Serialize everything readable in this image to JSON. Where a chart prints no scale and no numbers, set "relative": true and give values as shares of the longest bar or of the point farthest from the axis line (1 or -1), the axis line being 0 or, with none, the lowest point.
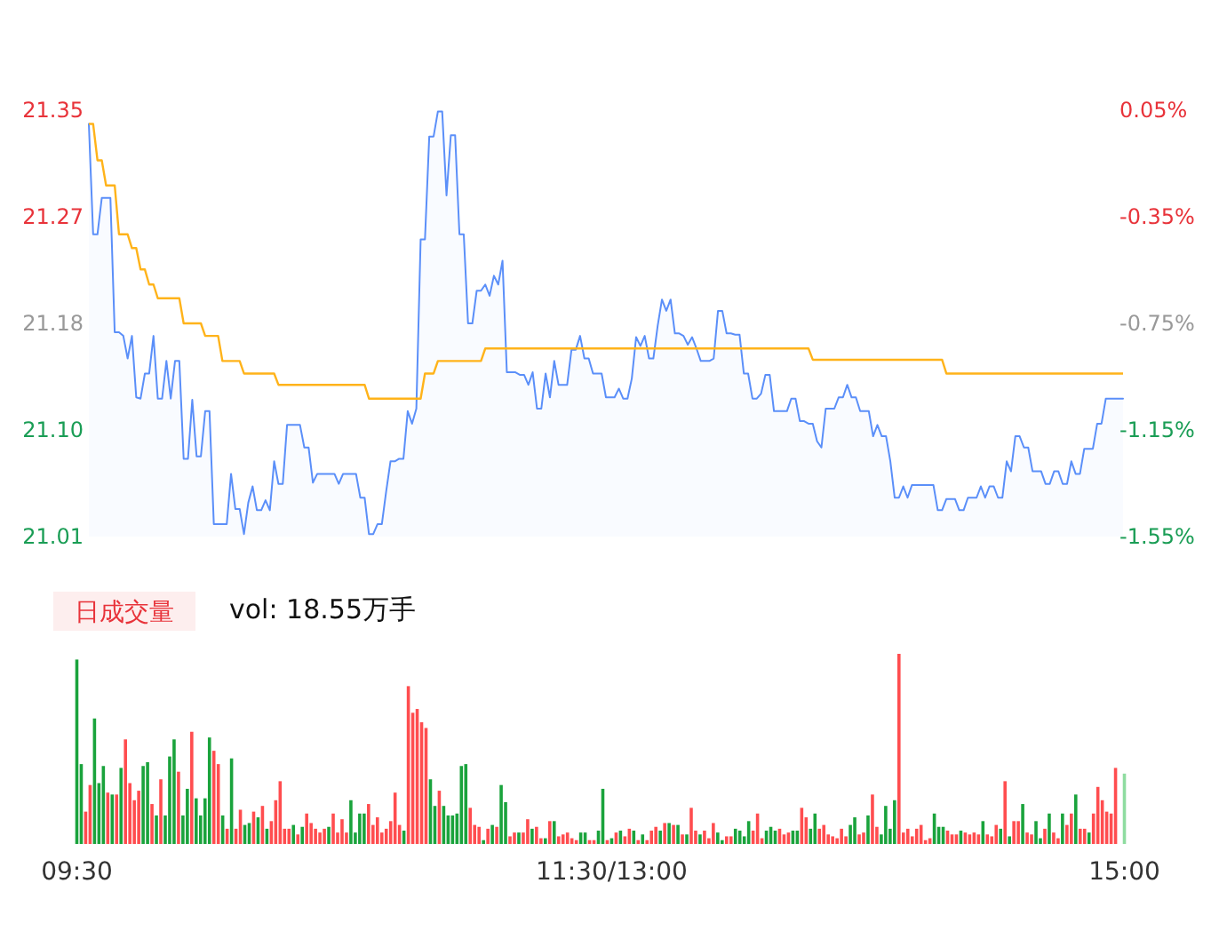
{
  "chart_data": [
    {
      "type": "line",
      "ylim": [
        21.01,
        21.35
      ],
      "yticks": [
        21.01,
        {
          "value": 21.095,
          "label": "21.10"
        },
        21.18,
        {
          "value": 21.265,
          "label": "21.27"
        },
        21.35
      ],
      "y2lim": [
        -1.55,
        0.05
      ],
      "y2ticks": [
        {
          "value": -1.55,
          "label": "-1.55%"
        },
        {
          "value": -1.15,
          "label": "-1.15%"
        },
        {
          "value": -0.75,
          "label": "-0.75%"
        },
        {
          "value": -0.35,
          "label": "-0.35%"
        },
        {
          "value": 0.05,
          "label": "0.05%"
        }
      ],
      "categories": [
        null,
        null,
        null,
        null,
        null,
        null,
        null,
        null,
        null,
        null,
        null,
        null,
        null,
        null,
        null,
        null,
        null,
        null,
        null,
        null,
        null,
        null,
        null,
        null,
        null,
        null,
        null,
        null,
        null,
        null,
        null,
        null,
        null,
        null,
        null,
        null,
        null,
        null,
        null,
        null,
        null,
        null,
        null,
        null,
        null,
        null,
        null,
        null,
        null,
        null,
        null,
        null,
        null,
        null,
        null,
        null,
        null,
        null,
        null,
        null,
        null,
        null,
        null,
        null,
        null,
        null,
        null,
        null,
        null,
        null,
        null,
        null,
        null,
        null,
        null,
        null,
        null,
        null,
        null,
        null,
        null,
        null,
        null,
        null,
        null,
        null,
        null,
        null,
        null,
        null,
        null,
        null,
        null,
        null,
        null,
        null,
        null,
        null,
        null,
        null,
        null,
        null,
        null,
        null,
        null,
        null,
        null,
        null,
        null,
        null,
        null,
        null,
        null,
        null,
        null,
        null,
        null,
        null,
        null,
        null,
        null,
        null,
        null,
        null,
        null,
        null,
        null,
        null,
        null,
        null,
        null,
        null,
        null,
        null,
        null,
        null,
        null,
        null,
        null,
        null,
        null,
        null,
        null,
        null,
        null,
        null,
        null,
        null,
        null,
        null,
        null,
        null,
        null,
        null,
        null,
        null,
        null,
        null,
        null,
        null,
        null,
        null,
        null,
        null,
        null,
        null,
        null,
        null,
        null,
        null,
        null,
        null,
        null,
        null,
        null,
        null,
        null,
        null,
        null,
        null,
        null,
        null,
        null,
        null,
        null,
        null,
        null,
        null,
        null,
        null,
        null,
        null,
        null,
        null,
        null,
        null,
        null,
        null,
        null,
        null,
        null,
        null,
        null,
        null,
        null,
        null,
        null,
        null,
        null,
        null,
        null,
        null,
        null,
        null,
        null,
        null,
        null,
        null,
        null,
        null,
        null,
        null,
        null,
        null,
        null,
        null,
        null,
        null,
        null,
        null,
        null,
        null,
        null,
        null,
        null,
        null,
        null,
        null,
        null,
        null,
        null
      ],
      "series": [
        {
          "type": "area",
          "color": "#5b8ff9",
          "values": [
            21.339,
            21.251,
            21.251,
            21.28,
            21.28,
            21.28,
            21.173,
            21.173,
            21.17,
            21.152,
            21.17,
            21.121,
            21.12,
            21.14,
            21.14,
            21.17,
            21.12,
            21.12,
            21.15,
            21.12,
            21.15,
            21.15,
            21.072,
            21.072,
            21.119,
            21.074,
            21.074,
            21.11,
            21.11,
            21.02,
            21.02,
            21.02,
            21.02,
            21.06,
            21.032,
            21.032,
            21.012,
            21.037,
            21.05,
            21.031,
            21.031,
            21.039,
            21.031,
            21.07,
            21.052,
            21.052,
            21.099,
            21.099,
            21.099,
            21.099,
            21.081,
            21.081,
            21.053,
            21.06,
            21.06,
            21.06,
            21.06,
            21.06,
            21.052,
            21.06,
            21.06,
            21.06,
            21.06,
            21.041,
            21.041,
            21.012,
            21.012,
            21.02,
            21.02,
            21.046,
            21.07,
            21.07,
            21.072,
            21.072,
            21.11,
            21.1,
            21.112,
            21.247,
            21.247,
            21.329,
            21.329,
            21.349,
            21.349,
            21.282,
            21.33,
            21.33,
            21.251,
            21.251,
            21.18,
            21.18,
            21.206,
            21.206,
            21.211,
            21.202,
            21.218,
            21.211,
            21.23,
            21.141,
            21.141,
            21.141,
            21.139,
            21.139,
            21.131,
            21.141,
            21.112,
            21.112,
            21.14,
            21.121,
            21.15,
            21.131,
            21.131,
            21.131,
            21.159,
            21.159,
            21.17,
            21.152,
            21.152,
            21.14,
            21.14,
            21.14,
            21.121,
            21.121,
            21.121,
            21.128,
            21.12,
            21.12,
            21.136,
            21.169,
            21.162,
            21.17,
            21.152,
            21.152,
            21.178,
            21.199,
            21.19,
            21.199,
            21.172,
            21.172,
            21.17,
            21.163,
            21.169,
            21.16,
            21.15,
            21.15,
            21.15,
            21.152,
            21.19,
            21.19,
            21.172,
            21.172,
            21.171,
            21.171,
            21.14,
            21.14,
            21.12,
            21.12,
            21.124,
            21.139,
            21.139,
            21.11,
            21.11,
            21.11,
            21.11,
            21.12,
            21.12,
            21.102,
            21.102,
            21.1,
            21.1,
            21.086,
            21.081,
            21.112,
            21.112,
            21.112,
            21.121,
            21.121,
            21.131,
            21.121,
            21.121,
            21.11,
            21.11,
            21.11,
            21.09,
            21.099,
            21.09,
            21.09,
            21.07,
            21.041,
            21.041,
            21.05,
            21.041,
            21.051,
            21.051,
            21.051,
            21.051,
            21.051,
            21.051,
            21.031,
            21.031,
            21.04,
            21.04,
            21.04,
            21.031,
            21.031,
            21.041,
            21.041,
            21.041,
            21.05,
            21.041,
            21.05,
            21.05,
            21.041,
            21.041,
            21.07,
            21.062,
            21.09,
            21.09,
            21.081,
            21.081,
            21.062,
            21.062,
            21.062,
            21.052,
            21.052,
            21.062,
            21.062,
            21.052,
            21.052,
            21.07,
            21.06,
            21.06,
            21.08,
            21.08,
            21.08,
            21.1,
            21.1,
            21.12,
            21.12,
            21.12,
            21.12,
            21.12
          ]
        },
        {
          "type": "line",
          "color": "#ffb31a",
          "values": [
            21.339,
            21.339,
            21.31,
            21.31,
            21.29,
            21.29,
            21.29,
            21.251,
            21.251,
            21.251,
            21.24,
            21.24,
            21.223,
            21.223,
            21.211,
            21.211,
            21.2,
            21.2,
            21.2,
            21.2,
            21.2,
            21.2,
            21.18,
            21.18,
            21.18,
            21.18,
            21.18,
            21.17,
            21.17,
            21.17,
            21.17,
            21.15,
            21.15,
            21.15,
            21.15,
            21.15,
            21.14,
            21.14,
            21.14,
            21.14,
            21.14,
            21.14,
            21.14,
            21.14,
            21.131,
            21.131,
            21.131,
            21.131,
            21.131,
            21.131,
            21.131,
            21.131,
            21.131,
            21.131,
            21.131,
            21.131,
            21.131,
            21.131,
            21.131,
            21.131,
            21.131,
            21.131,
            21.131,
            21.131,
            21.131,
            21.12,
            21.12,
            21.12,
            21.12,
            21.12,
            21.12,
            21.12,
            21.12,
            21.12,
            21.12,
            21.12,
            21.12,
            21.12,
            21.14,
            21.14,
            21.14,
            21.15,
            21.15,
            21.15,
            21.15,
            21.15,
            21.15,
            21.15,
            21.15,
            21.15,
            21.15,
            21.15,
            21.16,
            21.16,
            21.16,
            21.16,
            21.16,
            21.16,
            21.16,
            21.16,
            21.16,
            21.16,
            21.16,
            21.16,
            21.16,
            21.16,
            21.16,
            21.16,
            21.16,
            21.16,
            21.16,
            21.16,
            21.16,
            21.16,
            21.16,
            21.16,
            21.16,
            21.16,
            21.16,
            21.16,
            21.16,
            21.16,
            21.16,
            21.16,
            21.16,
            21.16,
            21.16,
            21.16,
            21.16,
            21.16,
            21.16,
            21.16,
            21.16,
            21.16,
            21.16,
            21.16,
            21.16,
            21.16,
            21.16,
            21.16,
            21.16,
            21.16,
            21.16,
            21.16,
            21.16,
            21.16,
            21.16,
            21.16,
            21.16,
            21.16,
            21.16,
            21.16,
            21.16,
            21.16,
            21.16,
            21.16,
            21.16,
            21.16,
            21.16,
            21.16,
            21.16,
            21.16,
            21.16,
            21.16,
            21.16,
            21.16,
            21.16,
            21.16,
            21.151,
            21.151,
            21.151,
            21.151,
            21.151,
            21.151,
            21.151,
            21.151,
            21.151,
            21.151,
            21.151,
            21.151,
            21.151,
            21.151,
            21.151,
            21.151,
            21.151,
            21.151,
            21.151,
            21.151,
            21.151,
            21.151,
            21.151,
            21.151,
            21.151,
            21.151,
            21.151,
            21.151,
            21.151,
            21.151,
            21.151,
            21.14,
            21.14,
            21.14,
            21.14,
            21.14,
            21.14,
            21.14,
            21.14,
            21.14,
            21.14,
            21.14,
            21.14,
            21.14,
            21.14,
            21.14,
            21.14,
            21.14,
            21.14,
            21.14,
            21.14,
            21.14,
            21.14,
            21.14,
            21.14,
            21.14,
            21.14,
            21.14,
            21.14,
            21.14,
            21.14,
            21.14,
            21.14,
            21.14,
            21.14,
            21.14,
            21.14,
            21.14,
            21.14,
            21.14,
            21.14,
            21.14,
            21.14
          ]
        }
      ]
    },
    {
      "type": "bar",
      "title": "日成交量",
      "subtitle": "vol: 18.55万手",
      "relative": true,
      "categories": [
        "09:30",
        null,
        null,
        null,
        null,
        null,
        null,
        null,
        null,
        null,
        null,
        null,
        null,
        null,
        null,
        null,
        null,
        null,
        null,
        null,
        null,
        null,
        null,
        null,
        null,
        null,
        null,
        null,
        null,
        null,
        null,
        null,
        null,
        null,
        null,
        null,
        null,
        null,
        null,
        null,
        null,
        null,
        null,
        null,
        null,
        null,
        null,
        null,
        null,
        null,
        null,
        null,
        null,
        null,
        null,
        null,
        null,
        null,
        null,
        null,
        null,
        null,
        null,
        null,
        null,
        null,
        null,
        null,
        null,
        null,
        null,
        null,
        null,
        null,
        null,
        null,
        null,
        null,
        null,
        null,
        null,
        null,
        null,
        null,
        null,
        null,
        null,
        null,
        null,
        null,
        null,
        null,
        null,
        null,
        null,
        null,
        null,
        null,
        null,
        null,
        null,
        null,
        null,
        null,
        null,
        null,
        null,
        null,
        null,
        null,
        null,
        null,
        null,
        null,
        null,
        null,
        null,
        null,
        null,
        null,
        null,
        "11:30/13:00",
        null,
        null,
        null,
        null,
        null,
        null,
        null,
        null,
        null,
        null,
        null,
        null,
        null,
        null,
        null,
        null,
        null,
        null,
        null,
        null,
        null,
        null,
        null,
        null,
        null,
        null,
        null,
        null,
        null,
        null,
        null,
        null,
        null,
        null,
        null,
        null,
        null,
        null,
        null,
        null,
        null,
        null,
        null,
        null,
        null,
        null,
        null,
        null,
        null,
        null,
        null,
        null,
        null,
        null,
        null,
        null,
        null,
        null,
        null,
        null,
        null,
        null,
        null,
        null,
        null,
        null,
        null,
        null,
        null,
        null,
        null,
        null,
        null,
        null,
        null,
        null,
        null,
        null,
        null,
        null,
        null,
        null,
        null,
        null,
        null,
        null,
        null,
        null,
        null,
        null,
        null,
        null,
        null,
        null,
        null,
        null,
        null,
        null,
        null,
        null,
        null,
        null,
        null,
        null,
        null,
        null,
        null,
        null,
        null,
        null,
        null,
        null,
        null,
        null,
        null,
        "15:00"
      ],
      "values": [
        0.97,
        0.42,
        0.17,
        0.31,
        0.66,
        0.32,
        0.41,
        0.27,
        0.26,
        0.26,
        0.4,
        0.55,
        0.32,
        0.23,
        0.28,
        0.41,
        0.43,
        0.21,
        0.15,
        0.34,
        0.15,
        0.46,
        0.55,
        0.38,
        0.15,
        0.29,
        0.59,
        0.24,
        0.15,
        0.24,
        0.56,
        0.49,
        0.42,
        0.15,
        0.08,
        0.45,
        0.08,
        0.18,
        0.1,
        0.11,
        0.17,
        0.14,
        0.2,
        0.08,
        0.12,
        0.23,
        0.33,
        0.08,
        0.08,
        0.1,
        0.05,
        0.09,
        0.16,
        0.11,
        0.08,
        0.06,
        0.08,
        0.09,
        0.16,
        0.06,
        0.13,
        0.06,
        0.23,
        0.06,
        0.16,
        0.16,
        0.21,
        0.1,
        0.14,
        0.06,
        0.08,
        0.12,
        0.27,
        0.1,
        0.07,
        0.83,
        0.69,
        0.71,
        0.64,
        0.61,
        0.34,
        0.2,
        0.28,
        0.2,
        0.15,
        0.15,
        0.16,
        0.41,
        0.42,
        0.19,
        0.1,
        0.09,
        0.02,
        0.08,
        0.1,
        0.09,
        0.31,
        0.22,
        0.04,
        0.06,
        0.06,
        0.06,
        0.13,
        0.08,
        0.09,
        0.03,
        0.03,
        0.12,
        0.12,
        0.04,
        0.05,
        0.06,
        0.03,
        0.02,
        0.06,
        0.06,
        0.02,
        0.02,
        0.07,
        0.29,
        0.02,
        0.03,
        0.06,
        0.07,
        0.04,
        0.08,
        0.07,
        0.02,
        0.05,
        0.02,
        0.07,
        0.09,
        0.07,
        0.11,
        0.11,
        0.1,
        0.1,
        0.05,
        0.05,
        0.19,
        0.07,
        0.05,
        0.07,
        0.03,
        0.11,
        0.06,
        0.02,
        0.04,
        0.04,
        0.08,
        0.07,
        0.04,
        0.12,
        0.07,
        0.16,
        0.03,
        0.07,
        0.09,
        0.07,
        0.08,
        0.05,
        0.06,
        0.07,
        0.07,
        0.19,
        0.14,
        0.08,
        0.16,
        0.08,
        0.1,
        0.05,
        0.04,
        0.03,
        0.08,
        0.04,
        0.1,
        0.14,
        0.05,
        0.06,
        0.15,
        0.26,
        0.09,
        0.05,
        0.2,
        0.08,
        0.23,
        1,
        0.06,
        0.08,
        0.04,
        0.08,
        0.1,
        0.02,
        0.03,
        0.16,
        0.09,
        0.09,
        0.07,
        0.05,
        0.05,
        0.07,
        0.06,
        0.05,
        0.06,
        0.05,
        0.12,
        0.05,
        0.04,
        0.1,
        0.08,
        0.33,
        0.04,
        0.12,
        0.12,
        0.21,
        0.06,
        0.05,
        0.12,
        0.03,
        0.08,
        0.16,
        0.06,
        0.03,
        0.16,
        0.1,
        0.16,
        0.26,
        0.08,
        0.08,
        0.06,
        0.16,
        0.3,
        0.23,
        0.17,
        0.16,
        0.4,
        null,
        0.37
      ],
      "colors": [
        "#1aa33c",
        "#1aa33c",
        "#ff4d4f",
        "#ff4d4f",
        "#1aa33c",
        "#1aa33c",
        "#1aa33c",
        "#ff4d4f",
        "#1aa33c",
        "#ff4d4f",
        "#1aa33c",
        "#ff4d4f",
        "#ff4d4f",
        "#ff4d4f",
        "#ff4d4f",
        "#1aa33c",
        "#1aa33c",
        "#ff4d4f",
        "#1aa33c",
        "#ff4d4f",
        "#1aa33c",
        "#1aa33c",
        "#1aa33c",
        "#ff4d4f",
        "#1aa33c",
        "#1aa33c",
        "#ff4d4f",
        "#1aa33c",
        "#1aa33c",
        "#1aa33c",
        "#1aa33c",
        "#ff4d4f",
        "#ff4d4f",
        "#1aa33c",
        "#ff4d4f",
        "#1aa33c",
        "#ff4d4f",
        "#ff4d4f",
        "#1aa33c",
        "#1aa33c",
        "#ff4d4f",
        "#1aa33c",
        "#ff4d4f",
        "#1aa33c",
        "#ff4d4f",
        "#ff4d4f",
        "#ff4d4f",
        "#ff4d4f",
        "#ff4d4f",
        "#1aa33c",
        "#ff4d4f",
        "#1aa33c",
        "#ff4d4f",
        "#ff4d4f",
        "#ff4d4f",
        "#ff4d4f",
        "#ff4d4f",
        "#1aa33c",
        "#ff4d4f",
        "#ff4d4f",
        "#ff4d4f",
        "#ff4d4f",
        "#1aa33c",
        "#1aa33c",
        "#1aa33c",
        "#1aa33c",
        "#ff4d4f",
        "#ff4d4f",
        "#ff4d4f",
        "#ff4d4f",
        "#ff4d4f",
        "#ff4d4f",
        "#ff4d4f",
        "#ff4d4f",
        "#1aa33c",
        "#ff4d4f",
        "#ff4d4f",
        "#ff4d4f",
        "#ff4d4f",
        "#ff4d4f",
        "#1aa33c",
        "#1aa33c",
        "#ff4d4f",
        "#1aa33c",
        "#1aa33c",
        "#1aa33c",
        "#1aa33c",
        "#1aa33c",
        "#1aa33c",
        "#ff4d4f",
        "#ff4d4f",
        "#ff4d4f",
        "#1aa33c",
        "#ff4d4f",
        "#1aa33c",
        "#ff4d4f",
        "#1aa33c",
        "#1aa33c",
        "#ff4d4f",
        "#ff4d4f",
        "#1aa33c",
        "#ff4d4f",
        "#ff4d4f",
        "#1aa33c",
        "#ff4d4f",
        "#ff4d4f",
        "#1aa33c",
        "#ff4d4f",
        "#1aa33c",
        "#ff4d4f",
        "#ff4d4f",
        "#ff4d4f",
        "#ff4d4f",
        "#ff4d4f",
        "#1aa33c",
        "#1aa33c",
        "#ff4d4f",
        "#ff4d4f",
        "#1aa33c",
        "#1aa33c",
        "#ff4d4f",
        "#1aa33c",
        "#ff4d4f",
        "#1aa33c",
        "#ff4d4f",
        "#ff4d4f",
        "#1aa33c",
        "#ff4d4f",
        "#1aa33c",
        "#ff4d4f",
        "#ff4d4f",
        "#ff4d4f",
        "#1aa33c",
        "#ff4d4f",
        "#1aa33c",
        "#ff4d4f",
        "#1aa33c",
        "#ff4d4f",
        "#1aa33c",
        "#ff4d4f",
        "#ff4d4f",
        "#1aa33c",
        "#ff4d4f",
        "#ff4d4f",
        "#ff4d4f",
        "#1aa33c",
        "#1aa33c",
        "#ff4d4f",
        "#ff4d4f",
        "#1aa33c",
        "#1aa33c",
        "#1aa33c",
        "#1aa33c",
        "#ff4d4f",
        "#ff4d4f",
        "#ff4d4f",
        "#1aa33c",
        "#1aa33c",
        "#1aa33c",
        "#ff4d4f",
        "#ff4d4f",
        "#ff4d4f",
        "#1aa33c",
        "#1aa33c",
        "#ff4d4f",
        "#ff4d4f",
        "#1aa33c",
        "#1aa33c",
        "#ff4d4f",
        "#ff4d4f",
        "#ff4d4f",
        "#ff4d4f",
        "#ff4d4f",
        "#ff4d4f",
        "#ff4d4f",
        "#1aa33c",
        "#1aa33c",
        "#ff4d4f",
        "#ff4d4f",
        "#1aa33c",
        "#ff4d4f",
        "#ff4d4f",
        "#1aa33c",
        "#1aa33c",
        "#1aa33c",
        "#1aa33c",
        "#ff4d4f",
        "#ff4d4f",
        "#ff4d4f",
        "#ff4d4f",
        "#ff4d4f",
        "#ff4d4f",
        "#ff4d4f",
        "#ff4d4f",
        "#1aa33c",
        "#1aa33c",
        "#1aa33c",
        "#ff4d4f",
        "#ff4d4f",
        "#ff4d4f",
        "#1aa33c",
        "#ff4d4f",
        "#ff4d4f",
        "#ff4d4f",
        "#ff4d4f",
        "#1aa33c",
        "#ff4d4f",
        "#ff4d4f",
        "#ff4d4f",
        "#1aa33c",
        "#ff4d4f",
        "#1aa33c",
        "#ff4d4f",
        "#ff4d4f",
        "#1aa33c",
        "#ff4d4f",
        "#ff4d4f",
        "#1aa33c",
        "#1aa33c",
        "#ff4d4f",
        "#1aa33c",
        "#ff4d4f",
        "#ff4d4f",
        "#1aa33c",
        "#ff4d4f",
        "#ff4d4f",
        "#1aa33c",
        "#ff4d4f",
        "#ff4d4f",
        "#1aa33c",
        "#ff4d4f",
        "#ff4d4f",
        "#ff4d4f",
        "#ff4d4f",
        "#ff4d4f",
        "#ff4d4f",
        null,
        "#8fdca0"
      ]
    }
  ]
}
